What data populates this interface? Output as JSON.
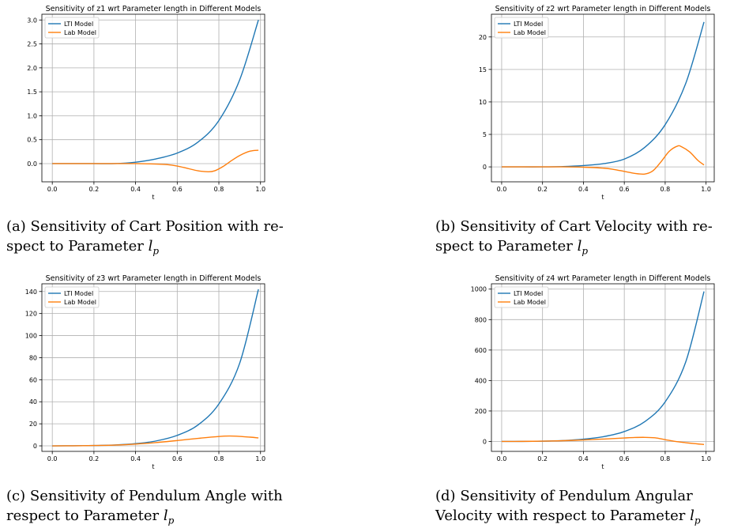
{
  "chart_data": [
    {
      "type": "line",
      "title": "Sensitivity of z1 wrt Parameter length in Different Models",
      "xlabel": "t",
      "ylabel": "",
      "xlim": [
        -0.05,
        1.02
      ],
      "ylim": [
        -0.38,
        3.12
      ],
      "xticks": [
        0.0,
        0.2,
        0.4,
        0.6,
        0.8,
        1.0
      ],
      "xtick_labels": [
        "0.0",
        "0.2",
        "0.4",
        "0.6",
        "0.8",
        "1.0"
      ],
      "yticks": [
        0.0,
        0.5,
        1.0,
        1.5,
        2.0,
        2.5,
        3.0
      ],
      "ytick_labels": [
        "0.0",
        "0.5",
        "1.0",
        "1.5",
        "2.0",
        "2.5",
        "3.0"
      ],
      "grid": true,
      "legend": "top-left",
      "series": [
        {
          "name": "LTI Model",
          "color": "#1f77b4",
          "x": [
            0.0,
            0.1,
            0.2,
            0.3,
            0.4,
            0.5,
            0.6,
            0.7,
            0.8,
            0.9,
            0.99
          ],
          "y": [
            0.0,
            0.0,
            0.0,
            0.0,
            0.03,
            0.1,
            0.22,
            0.45,
            0.9,
            1.75,
            3.0
          ]
        },
        {
          "name": "Lab Model",
          "color": "#ff7f0e",
          "x": [
            0.0,
            0.1,
            0.2,
            0.3,
            0.4,
            0.5,
            0.55,
            0.6,
            0.65,
            0.7,
            0.75,
            0.78,
            0.82,
            0.86,
            0.9,
            0.95,
            0.99
          ],
          "y": [
            0.0,
            0.0,
            0.0,
            0.0,
            0.0,
            -0.01,
            -0.02,
            -0.05,
            -0.1,
            -0.15,
            -0.17,
            -0.15,
            -0.06,
            0.06,
            0.17,
            0.26,
            0.28
          ]
        }
      ],
      "caption": {
        "label": "(a)",
        "line1": "Sensitivity of Cart Position with re-",
        "line2": "spect to Parameter"
      }
    },
    {
      "type": "line",
      "title": "Sensitivity of z2 wrt Parameter length in Different Models",
      "xlabel": "t",
      "ylabel": "",
      "xlim": [
        -0.05,
        1.04
      ],
      "ylim": [
        -2.3,
        23.5
      ],
      "xticks": [
        0.0,
        0.2,
        0.4,
        0.6,
        0.8,
        1.0
      ],
      "xtick_labels": [
        "0.0",
        "0.2",
        "0.4",
        "0.6",
        "0.8",
        "1.0"
      ],
      "yticks": [
        0,
        5,
        10,
        15,
        20
      ],
      "ytick_labels": [
        "0",
        "5",
        "10",
        "15",
        "20"
      ],
      "grid": true,
      "legend": "top-left",
      "series": [
        {
          "name": "LTI Model",
          "color": "#1f77b4",
          "x": [
            0.0,
            0.1,
            0.2,
            0.3,
            0.4,
            0.5,
            0.6,
            0.7,
            0.8,
            0.9,
            0.99
          ],
          "y": [
            0.0,
            0.0,
            0.0,
            0.05,
            0.2,
            0.5,
            1.2,
            3.0,
            6.5,
            12.8,
            22.3
          ]
        },
        {
          "name": "Lab Model",
          "color": "#ff7f0e",
          "x": [
            0.0,
            0.1,
            0.2,
            0.3,
            0.4,
            0.5,
            0.55,
            0.6,
            0.65,
            0.7,
            0.74,
            0.78,
            0.82,
            0.86,
            0.88,
            0.92,
            0.96,
            0.99
          ],
          "y": [
            0.0,
            0.0,
            0.0,
            0.0,
            -0.05,
            -0.2,
            -0.4,
            -0.7,
            -1.0,
            -1.1,
            -0.6,
            0.8,
            2.4,
            3.2,
            3.1,
            2.3,
            1.0,
            0.3
          ]
        }
      ],
      "caption": {
        "label": "(b)",
        "line1": "Sensitivity of Cart Velocity with re-",
        "line2": "spect to Parameter"
      }
    },
    {
      "type": "line",
      "title": "Sensitivity of z3 wrt Parameter length in Different Models",
      "xlabel": "t",
      "ylabel": "",
      "xlim": [
        -0.05,
        1.02
      ],
      "ylim": [
        -5,
        147
      ],
      "xticks": [
        0.0,
        0.2,
        0.4,
        0.6,
        0.8,
        1.0
      ],
      "xtick_labels": [
        "0.0",
        "0.2",
        "0.4",
        "0.6",
        "0.8",
        "1.0"
      ],
      "yticks": [
        0,
        20,
        40,
        60,
        80,
        100,
        120,
        140
      ],
      "ytick_labels": [
        "0",
        "20",
        "40",
        "60",
        "80",
        "100",
        "120",
        "140"
      ],
      "grid": true,
      "legend": "top-left",
      "series": [
        {
          "name": "LTI Model",
          "color": "#1f77b4",
          "x": [
            0.0,
            0.1,
            0.2,
            0.3,
            0.4,
            0.5,
            0.6,
            0.7,
            0.8,
            0.9,
            0.99
          ],
          "y": [
            0.0,
            0.1,
            0.3,
            0.8,
            2.0,
            4.5,
            9.5,
            19.0,
            38.0,
            75.0,
            142.0
          ]
        },
        {
          "name": "Lab Model",
          "color": "#ff7f0e",
          "x": [
            0.0,
            0.1,
            0.2,
            0.3,
            0.4,
            0.5,
            0.6,
            0.7,
            0.8,
            0.85,
            0.9,
            0.95,
            0.99
          ],
          "y": [
            0.0,
            0.1,
            0.3,
            0.7,
            1.6,
            3.0,
            4.8,
            6.8,
            8.5,
            8.9,
            8.6,
            7.9,
            7.2
          ]
        }
      ],
      "caption": {
        "label": "(c)",
        "line1": "Sensitivity of Pendulum Angle with",
        "line2": "respect to Parameter"
      }
    },
    {
      "type": "line",
      "title": "Sensitivity of z4 wrt Parameter length in Different Models",
      "xlabel": "t",
      "ylabel": "",
      "xlim": [
        -0.05,
        1.04
      ],
      "ylim": [
        -65,
        1035
      ],
      "xticks": [
        0.0,
        0.2,
        0.4,
        0.6,
        0.8,
        1.0
      ],
      "xtick_labels": [
        "0.0",
        "0.2",
        "0.4",
        "0.6",
        "0.8",
        "1.0"
      ],
      "yticks": [
        0,
        200,
        400,
        600,
        800,
        1000
      ],
      "ytick_labels": [
        "0",
        "200",
        "400",
        "600",
        "800",
        "1000"
      ],
      "grid": true,
      "legend": "top-left",
      "series": [
        {
          "name": "LTI Model",
          "color": "#1f77b4",
          "x": [
            0.0,
            0.1,
            0.2,
            0.3,
            0.4,
            0.5,
            0.6,
            0.7,
            0.8,
            0.9,
            0.99
          ],
          "y": [
            0.0,
            0.5,
            2.0,
            6.0,
            15.0,
            32.0,
            65.0,
            130.0,
            260.0,
            520.0,
            985.0
          ]
        },
        {
          "name": "Lab Model",
          "color": "#ff7f0e",
          "x": [
            0.0,
            0.1,
            0.2,
            0.3,
            0.4,
            0.5,
            0.6,
            0.65,
            0.7,
            0.75,
            0.8,
            0.85,
            0.9,
            0.95,
            0.99
          ],
          "y": [
            0.0,
            0.5,
            2.0,
            5.0,
            10.0,
            16.0,
            23.0,
            26.0,
            27.0,
            24.0,
            12.0,
            0.0,
            -8.0,
            -15.0,
            -20.0
          ]
        }
      ],
      "caption": {
        "label": "(d)",
        "line1": "Sensitivity of Pendulum Angular",
        "line2": "Velocity with respect to Parameter"
      }
    }
  ]
}
